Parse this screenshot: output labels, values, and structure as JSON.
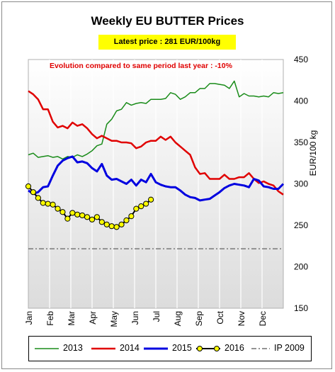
{
  "chart_data": {
    "type": "line",
    "title": "Weekly EU BUTTER Prices",
    "subtitle": "Latest price : 281 EUR/100kg",
    "annotation": "Evolution compared to same period last year : -10%",
    "ylabel": "EUR/100 kg",
    "ylim": [
      150,
      450
    ],
    "yticks": [
      150,
      200,
      250,
      300,
      350,
      400,
      450
    ],
    "xlim": [
      1,
      53
    ],
    "months": [
      "Jan",
      "Feb",
      "Mar",
      "Apr",
      "May",
      "Jun",
      "Jul",
      "Aug",
      "Sep",
      "Oct",
      "Nov",
      "Dec"
    ],
    "grid": "vertical",
    "legend_position": "bottom",
    "series": [
      {
        "name": "2013",
        "color": "#1a8c1a",
        "width": 1.5,
        "marker": false,
        "values": [
          335,
          337,
          332,
          333,
          334,
          332,
          333,
          330,
          333,
          332,
          335,
          333,
          336,
          340,
          346,
          348,
          372,
          378,
          388,
          390,
          398,
          395,
          397,
          398,
          397,
          402,
          402,
          402,
          403,
          410,
          408,
          402,
          405,
          410,
          410,
          415,
          415,
          421,
          421,
          420,
          419,
          415,
          424,
          405,
          409,
          406,
          406,
          405,
          406,
          405,
          410,
          409,
          410
        ]
      },
      {
        "name": "2014",
        "color": "#e00000",
        "width": 2.5,
        "marker": false,
        "values": [
          412,
          408,
          402,
          390,
          390,
          375,
          368,
          370,
          367,
          374,
          370,
          372,
          367,
          360,
          355,
          358,
          355,
          352,
          352,
          350,
          350,
          349,
          343,
          345,
          350,
          352,
          352,
          357,
          353,
          357,
          350,
          345,
          340,
          335,
          320,
          312,
          313,
          306,
          306,
          306,
          311,
          306,
          306,
          308,
          308,
          313,
          306,
          301,
          303,
          300,
          298,
          291,
          287
        ]
      },
      {
        "name": "2015",
        "color": "#0000e0",
        "width": 3,
        "marker": false,
        "values": [
          292,
          288,
          290,
          296,
          297,
          310,
          322,
          328,
          331,
          333,
          326,
          327,
          325,
          319,
          315,
          324,
          310,
          305,
          306,
          303,
          300,
          305,
          298,
          305,
          302,
          312,
          302,
          299,
          297,
          296,
          296,
          292,
          287,
          284,
          283,
          280,
          281,
          282,
          286,
          290,
          295,
          298,
          300,
          299,
          298,
          296,
          306,
          304,
          297,
          296,
          294,
          294,
          300
        ]
      },
      {
        "name": "2016",
        "color": "#000000",
        "width": 2,
        "marker": true,
        "marker_fill": "#ffff00",
        "values": [
          297,
          290,
          283,
          277,
          276,
          275,
          270,
          266,
          258,
          265,
          263,
          262,
          260,
          257,
          260,
          254,
          251,
          249,
          248,
          251,
          256,
          261,
          270,
          273,
          276,
          281
        ]
      }
    ],
    "reference_lines": [
      {
        "name": "IP 2009",
        "value": 221.75,
        "color": "#555555",
        "dash": "dashdot"
      }
    ]
  }
}
